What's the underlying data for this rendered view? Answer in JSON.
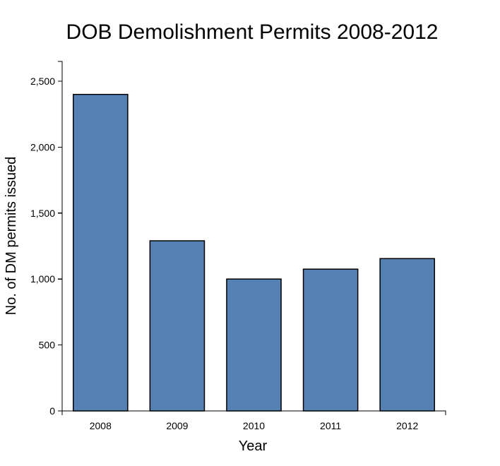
{
  "chart_data": {
    "type": "bar",
    "title": "DOB Demolishment Permits 2008-2012",
    "xlabel": "Year",
    "ylabel": "No. of DM permits issued",
    "categories": [
      "2008",
      "2009",
      "2010",
      "2011",
      "2012"
    ],
    "values": [
      2400,
      1290,
      1000,
      1075,
      1155
    ],
    "ylim": [
      0,
      2650
    ],
    "yticks": [
      0,
      500,
      1000,
      1500,
      2000,
      2500
    ],
    "ytick_labels": [
      "0",
      "500",
      "1,000",
      "1,500",
      "2,000",
      "2,500"
    ],
    "grid": false,
    "legend": "none",
    "bar_color": "#5580b4",
    "bar_stroke": "#000000"
  }
}
